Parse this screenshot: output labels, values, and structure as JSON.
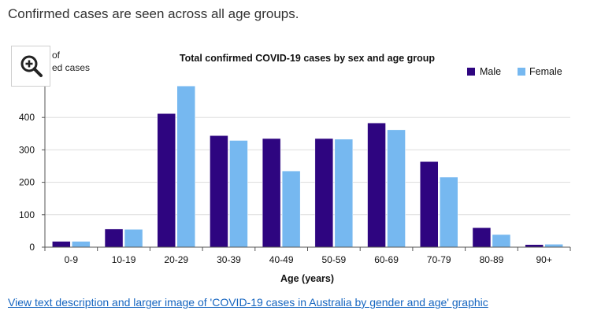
{
  "intro_text": "Confirmed cases are seen across all age groups.",
  "link_text": "View text description and larger image of 'COVID-19 cases in Australia by gender and age' graphic",
  "zoom_icon": "zoom-in-icon",
  "colors": {
    "male": "#2e0580",
    "female": "#76b8f0",
    "link": "#1565c0"
  },
  "chart_data": {
    "type": "bar",
    "title": "Total confirmed COVID-19 cases by sex and age group",
    "ylabel_partial": [
      "of",
      "ed cases"
    ],
    "xlabel": "Age (years)",
    "categories": [
      "0-9",
      "10-19",
      "20-29",
      "30-39",
      "40-49",
      "50-59",
      "60-69",
      "70-79",
      "80-89",
      "90+"
    ],
    "series": [
      {
        "name": "Male",
        "values": [
          18,
          56,
          412,
          344,
          335,
          335,
          383,
          264,
          60,
          8
        ]
      },
      {
        "name": "Female",
        "values": [
          18,
          55,
          497,
          329,
          235,
          333,
          362,
          216,
          39,
          9
        ]
      }
    ],
    "yticks": [
      0,
      100,
      200,
      300,
      400
    ],
    "ylim": [
      0,
      500
    ],
    "grid": true,
    "legend_position": "top-right"
  }
}
